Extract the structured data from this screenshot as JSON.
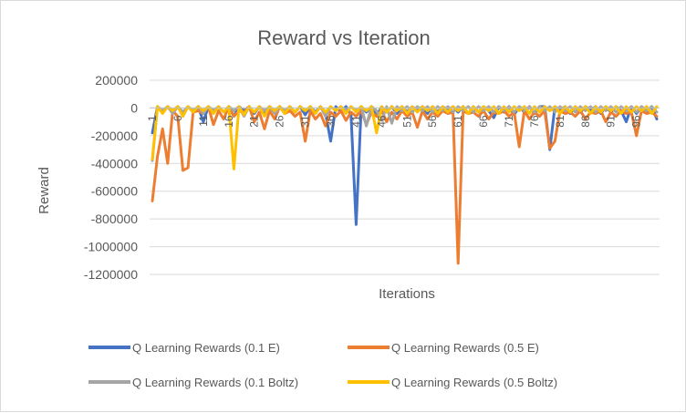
{
  "chart_data": {
    "type": "line",
    "title": "Reward vs Iteration",
    "xlabel": "Iterations",
    "ylabel": "Reward",
    "ylim": [
      -1200000,
      200000
    ],
    "yticks": [
      200000,
      0,
      -200000,
      -400000,
      -600000,
      -800000,
      -1000000,
      -1200000
    ],
    "yticklabels": [
      "200000",
      "0",
      "-200000",
      "-400000",
      "-600000",
      "-800000",
      "-1000000",
      "-1200000"
    ],
    "xticks": [
      1,
      6,
      11,
      16,
      21,
      26,
      31,
      36,
      41,
      46,
      51,
      56,
      61,
      66,
      71,
      76,
      81,
      86,
      91,
      96
    ],
    "xticklabels": [
      "1",
      "6",
      "11",
      "16",
      "21",
      "26",
      "31",
      "36",
      "41",
      "46",
      "51",
      "56",
      "61",
      "66",
      "71",
      "76",
      "81",
      "86",
      "91",
      "96"
    ],
    "x": [
      1,
      2,
      3,
      4,
      5,
      6,
      7,
      8,
      9,
      10,
      11,
      12,
      13,
      14,
      15,
      16,
      17,
      18,
      19,
      20,
      21,
      22,
      23,
      24,
      25,
      26,
      27,
      28,
      29,
      30,
      31,
      32,
      33,
      34,
      35,
      36,
      37,
      38,
      39,
      40,
      41,
      42,
      43,
      44,
      45,
      46,
      47,
      48,
      49,
      50,
      51,
      52,
      53,
      54,
      55,
      56,
      57,
      58,
      59,
      60,
      61,
      62,
      63,
      64,
      65,
      66,
      67,
      68,
      69,
      70,
      71,
      72,
      73,
      74,
      75,
      76,
      77,
      78,
      79,
      80,
      81,
      82,
      83,
      84,
      85,
      86,
      87,
      88,
      89,
      90,
      91,
      92,
      93,
      94,
      95,
      96,
      97,
      98,
      99,
      100
    ],
    "grid": true,
    "legend_position": "bottom",
    "series": [
      {
        "name": "Q Learning Rewards (0.1 E)",
        "color": "#4472C4",
        "values": [
          -180000,
          10000,
          -30000,
          10000,
          -20000,
          10000,
          -40000,
          10000,
          -30000,
          10000,
          -100000,
          10000,
          -20000,
          10000,
          -30000,
          10000,
          -60000,
          10000,
          -20000,
          10000,
          -40000,
          10000,
          -30000,
          10000,
          -20000,
          10000,
          -40000,
          10000,
          -30000,
          10000,
          -50000,
          10000,
          -30000,
          10000,
          -40000,
          -240000,
          10000,
          -30000,
          10000,
          -50000,
          -840000,
          10000,
          -30000,
          10000,
          -60000,
          10000,
          -30000,
          10000,
          -40000,
          10000,
          -30000,
          10000,
          -20000,
          10000,
          -40000,
          10000,
          -30000,
          10000,
          -20000,
          10000,
          -30000,
          10000,
          -40000,
          10000,
          -30000,
          10000,
          -20000,
          -70000,
          10000,
          -30000,
          10000,
          -50000,
          10000,
          -30000,
          10000,
          -40000,
          10000,
          10000,
          -300000,
          10000,
          -20000,
          10000,
          -40000,
          10000,
          -30000,
          10000,
          -20000,
          10000,
          -40000,
          10000,
          -30000,
          10000,
          -20000,
          -100000,
          10000,
          -40000,
          10000,
          -30000,
          10000,
          -80000
        ]
      },
      {
        "name": "Q Learning Rewards (0.5 E)",
        "color": "#ED7D31",
        "values": [
          -670000,
          -350000,
          -150000,
          -400000,
          -20000,
          -60000,
          -450000,
          -430000,
          -30000,
          -20000,
          -40000,
          10000,
          -120000,
          -20000,
          -80000,
          10000,
          -60000,
          -20000,
          -30000,
          10000,
          -100000,
          -30000,
          -150000,
          -20000,
          -80000,
          10000,
          -40000,
          -20000,
          -60000,
          -30000,
          -240000,
          -20000,
          -80000,
          -40000,
          -130000,
          -30000,
          -60000,
          -20000,
          -90000,
          -30000,
          -60000,
          -20000,
          -120000,
          -30000,
          -60000,
          -20000,
          -100000,
          -30000,
          -80000,
          -20000,
          -60000,
          -30000,
          -140000,
          -20000,
          -80000,
          -30000,
          -60000,
          -20000,
          -40000,
          -30000,
          -1120000,
          -20000,
          -40000,
          -30000,
          -60000,
          -20000,
          -80000,
          -30000,
          -40000,
          -20000,
          -60000,
          -30000,
          -280000,
          -20000,
          -80000,
          -30000,
          -60000,
          -20000,
          -290000,
          -240000,
          -20000,
          -40000,
          -30000,
          -60000,
          -20000,
          -80000,
          -30000,
          -40000,
          -20000,
          -100000,
          -30000,
          -60000,
          -20000,
          -40000,
          -30000,
          -200000,
          -20000,
          -40000,
          -30000,
          -60000
        ]
      },
      {
        "name": "Q Learning Rewards (0.1 Boltz)",
        "color": "#A5A5A5",
        "values": [
          -380000,
          10000,
          -20000,
          10000,
          -40000,
          10000,
          -30000,
          10000,
          -20000,
          10000,
          -40000,
          10000,
          -20000,
          10000,
          -30000,
          10000,
          -20000,
          10000,
          -60000,
          10000,
          -30000,
          10000,
          -20000,
          10000,
          -40000,
          10000,
          -20000,
          10000,
          -30000,
          10000,
          -20000,
          10000,
          -40000,
          10000,
          -60000,
          10000,
          -20000,
          10000,
          -30000,
          10000,
          -20000,
          10000,
          -130000,
          10000,
          -20000,
          -90000,
          10000,
          -110000,
          10000,
          -20000,
          10000,
          -30000,
          10000,
          -20000,
          10000,
          -30000,
          10000,
          -20000,
          10000,
          -30000,
          10000,
          -20000,
          10000,
          -30000,
          10000,
          -20000,
          10000,
          -30000,
          10000,
          -20000,
          10000,
          -30000,
          10000,
          -20000,
          10000,
          -30000,
          10000,
          -20000,
          10000,
          -30000,
          10000,
          -20000,
          10000,
          -30000,
          10000,
          -20000,
          10000,
          -30000,
          10000,
          -20000,
          10000,
          -30000,
          10000,
          -20000,
          10000,
          -30000,
          10000,
          -20000,
          10000,
          -30000
        ]
      },
      {
        "name": "Q Learning Rewards (0.5 Boltz)",
        "color": "#FFC000",
        "values": [
          -370000,
          10000,
          -40000,
          10000,
          -20000,
          10000,
          -60000,
          10000,
          -30000,
          10000,
          -20000,
          10000,
          -40000,
          10000,
          -30000,
          10000,
          -440000,
          10000,
          -50000,
          10000,
          -30000,
          10000,
          -60000,
          10000,
          -20000,
          10000,
          -40000,
          10000,
          -30000,
          10000,
          -20000,
          10000,
          -40000,
          10000,
          -30000,
          10000,
          -20000,
          10000,
          -40000,
          10000,
          -30000,
          10000,
          -20000,
          10000,
          -180000,
          10000,
          -30000,
          10000,
          -20000,
          10000,
          -40000,
          10000,
          -30000,
          10000,
          -20000,
          10000,
          -40000,
          10000,
          -30000,
          10000,
          -20000,
          10000,
          -40000,
          10000,
          -30000,
          10000,
          -20000,
          10000,
          -40000,
          10000,
          -30000,
          10000,
          -20000,
          10000,
          -40000,
          10000,
          -30000,
          10000,
          -20000,
          10000,
          -40000,
          10000,
          -30000,
          10000,
          -20000,
          10000,
          -40000,
          10000,
          -30000,
          10000,
          -20000,
          10000,
          -40000,
          10000,
          -30000,
          10000,
          -20000,
          10000,
          -40000,
          10000
        ]
      }
    ]
  }
}
